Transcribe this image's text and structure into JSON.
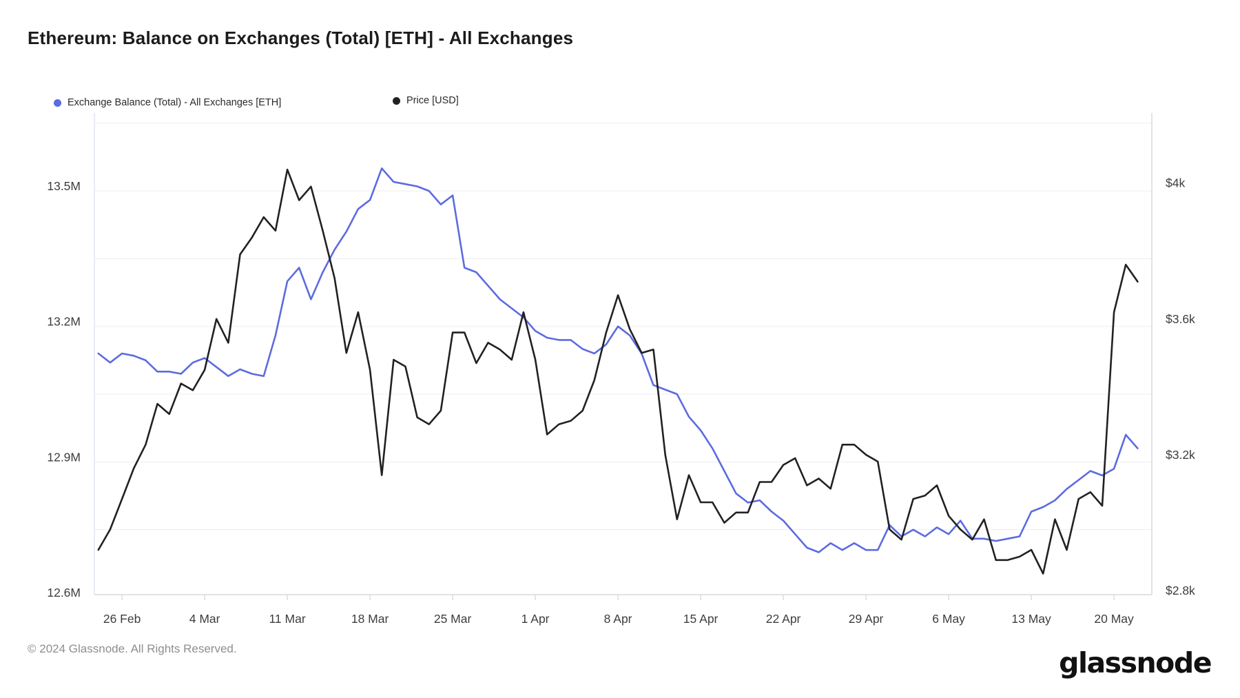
{
  "title": "Ethereum: Balance on Exchanges (Total) [ETH] - All Exchanges",
  "legend": [
    {
      "label": "Exchange Balance (Total) - All Exchanges [ETH]",
      "color": "#5b6be0"
    },
    {
      "label": "Price [USD]",
      "color": "#212121"
    }
  ],
  "footer": {
    "copyright": "© 2024 Glassnode. All Rights Reserved.",
    "brand": "glassnode"
  },
  "chart_data": {
    "type": "line",
    "title": "Ethereum: Balance on Exchanges (Total) [ETH] - All Exchanges",
    "grid": "horizontal-only",
    "legend_position": "top-left",
    "x": [
      "24 Feb",
      "25 Feb",
      "26 Feb",
      "27 Feb",
      "28 Feb",
      "29 Feb",
      "1 Mar",
      "2 Mar",
      "3 Mar",
      "4 Mar",
      "5 Mar",
      "6 Mar",
      "7 Mar",
      "8 Mar",
      "9 Mar",
      "10 Mar",
      "11 Mar",
      "12 Mar",
      "13 Mar",
      "14 Mar",
      "15 Mar",
      "16 Mar",
      "17 Mar",
      "18 Mar",
      "19 Mar",
      "20 Mar",
      "21 Mar",
      "22 Mar",
      "23 Mar",
      "24 Mar",
      "25 Mar",
      "26 Mar",
      "27 Mar",
      "28 Mar",
      "29 Mar",
      "30 Mar",
      "31 Mar",
      "1 Apr",
      "2 Apr",
      "3 Apr",
      "4 Apr",
      "5 Apr",
      "6 Apr",
      "7 Apr",
      "8 Apr",
      "9 Apr",
      "10 Apr",
      "11 Apr",
      "12 Apr",
      "13 Apr",
      "14 Apr",
      "15 Apr",
      "16 Apr",
      "17 Apr",
      "18 Apr",
      "19 Apr",
      "20 Apr",
      "21 Apr",
      "22 Apr",
      "23 Apr",
      "24 Apr",
      "25 Apr",
      "26 Apr",
      "27 Apr",
      "28 Apr",
      "29 Apr",
      "30 Apr",
      "1 May",
      "2 May",
      "3 May",
      "4 May",
      "5 May",
      "6 May",
      "7 May",
      "8 May",
      "9 May",
      "10 May",
      "11 May",
      "12 May",
      "13 May",
      "14 May",
      "15 May",
      "16 May",
      "17 May",
      "18 May",
      "19 May",
      "20 May",
      "21 May",
      "22 May"
    ],
    "x_tick_labels": [
      "26 Feb",
      "4 Mar",
      "11 Mar",
      "18 Mar",
      "25 Mar",
      "1 Apr",
      "8 Apr",
      "15 Apr",
      "22 Apr",
      "29 Apr",
      "6 May",
      "13 May",
      "20 May"
    ],
    "left_axis": {
      "unit": "M ETH",
      "tick_labels": [
        "12.6M",
        "12.9M",
        "13.2M",
        "13.5M"
      ],
      "tick_values": [
        12.6,
        12.9,
        13.2,
        13.5
      ],
      "ylim": [
        12.6,
        13.66
      ],
      "minor_step": 0.15
    },
    "right_axis": {
      "unit": "USD",
      "tick_labels": [
        "$2.8k",
        "$3.2k",
        "$3.6k",
        "$4k"
      ],
      "tick_values": [
        2.8,
        3.2,
        3.6,
        4.0
      ],
      "ylim": [
        2.8,
        4.21
      ],
      "minor_step": 0.2
    },
    "series": [
      {
        "name": "Exchange Balance (Total) - All Exchanges [ETH]",
        "axis": "left",
        "color": "#5b6be0",
        "values": [
          13.14,
          13.12,
          13.14,
          13.135,
          13.125,
          13.1,
          13.1,
          13.095,
          13.12,
          13.13,
          13.11,
          13.09,
          13.105,
          13.095,
          13.09,
          13.18,
          13.3,
          13.33,
          13.26,
          13.32,
          13.37,
          13.41,
          13.46,
          13.48,
          13.55,
          13.52,
          13.515,
          13.51,
          13.5,
          13.47,
          13.49,
          13.33,
          13.32,
          13.29,
          13.26,
          13.24,
          13.22,
          13.19,
          13.175,
          13.17,
          13.17,
          13.15,
          13.14,
          13.16,
          13.2,
          13.18,
          13.14,
          13.07,
          13.06,
          13.05,
          13.0,
          12.97,
          12.93,
          12.88,
          12.83,
          12.81,
          12.815,
          12.79,
          12.77,
          12.74,
          12.71,
          12.7,
          12.72,
          12.705,
          12.72,
          12.705,
          12.705,
          12.76,
          12.735,
          12.75,
          12.735,
          12.755,
          12.74,
          12.77,
          12.73,
          12.73,
          12.725,
          12.73,
          12.735,
          12.79,
          12.8,
          12.815,
          12.84,
          12.86,
          12.88,
          12.87,
          12.885,
          12.96,
          12.93
        ]
      },
      {
        "name": "Price [USD]",
        "axis": "right",
        "color": "#212121",
        "values": [
          2.94,
          3.0,
          3.09,
          3.18,
          3.25,
          3.37,
          3.34,
          3.43,
          3.41,
          3.47,
          3.62,
          3.55,
          3.81,
          3.86,
          3.92,
          3.88,
          4.06,
          3.97,
          4.01,
          3.88,
          3.74,
          3.52,
          3.64,
          3.47,
          3.16,
          3.5,
          3.48,
          3.33,
          3.31,
          3.35,
          3.58,
          3.58,
          3.49,
          3.55,
          3.53,
          3.5,
          3.64,
          3.5,
          3.28,
          3.31,
          3.32,
          3.35,
          3.44,
          3.58,
          3.69,
          3.59,
          3.52,
          3.53,
          3.22,
          3.03,
          3.16,
          3.08,
          3.08,
          3.02,
          3.05,
          3.05,
          3.14,
          3.14,
          3.19,
          3.21,
          3.13,
          3.15,
          3.12,
          3.25,
          3.25,
          3.22,
          3.2,
          3.0,
          2.97,
          3.09,
          3.1,
          3.13,
          3.04,
          3.0,
          2.97,
          3.03,
          2.91,
          2.91,
          2.92,
          2.94,
          2.87,
          3.03,
          2.94,
          3.09,
          3.11,
          3.07,
          3.64,
          3.78,
          3.73
        ]
      }
    ]
  },
  "colors": {
    "grid": "#ededed",
    "axis_border_left": "#dfe3f4",
    "axis_border": "#d9d9d9",
    "tick": "#dddddd",
    "axis_text": "#3d3d3d"
  }
}
